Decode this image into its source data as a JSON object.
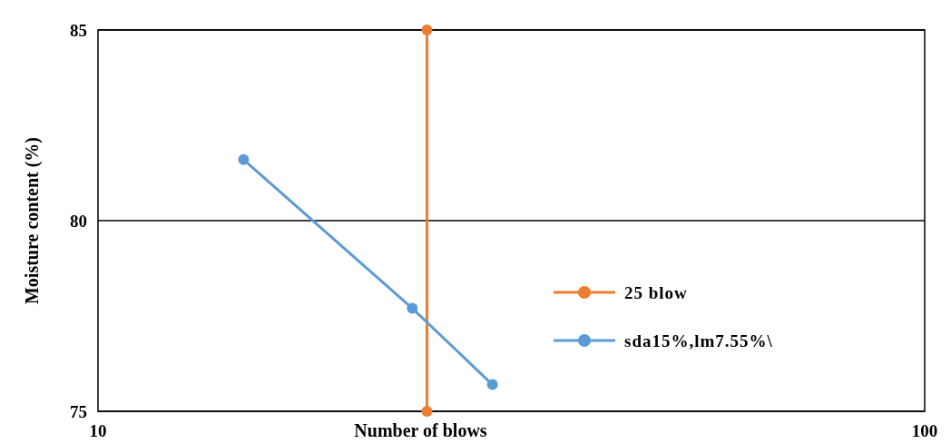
{
  "chart_data": {
    "type": "line",
    "xlabel": "Number of blows",
    "ylabel": "Moisture content (%)",
    "log": "x",
    "xlim": [
      10,
      100
    ],
    "xticks": [
      10,
      100
    ],
    "ylim": [
      75,
      85
    ],
    "yticks": [
      75,
      80,
      85
    ],
    "grid": "y",
    "legend": "right",
    "marker": "circle",
    "series": [
      {
        "name": "25 blow",
        "color": "#ed7d31",
        "x": [
          25,
          25
        ],
        "values": [
          75,
          85
        ]
      },
      {
        "name": "sda15%,lm7.55%\\",
        "color": "#5b9bd5",
        "x": [
          15,
          24,
          30
        ],
        "values": [
          81.6,
          77.7,
          75.7
        ]
      }
    ]
  }
}
